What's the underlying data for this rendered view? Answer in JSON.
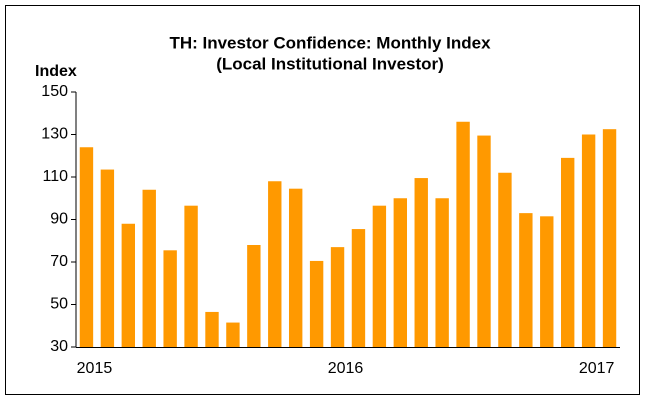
{
  "chart_data": {
    "type": "bar",
    "title": "TH: Investor Confidence: Monthly Index",
    "subtitle": "(Local Institutional Investor)",
    "y_label": "Index",
    "categories": [
      "2015",
      null,
      null,
      null,
      null,
      null,
      null,
      null,
      null,
      null,
      null,
      null,
      "2016",
      null,
      null,
      null,
      null,
      null,
      null,
      null,
      null,
      null,
      null,
      null,
      "2017",
      null
    ],
    "values": [
      124,
      113.5,
      88,
      104,
      75.5,
      96.5,
      46.5,
      41.5,
      78,
      108,
      104.5,
      70.5,
      77,
      85.5,
      96.5,
      100,
      109.5,
      100,
      136,
      129.5,
      112,
      93,
      91.5,
      119,
      130,
      132.5
    ],
    "color": "#ff9900",
    "ylim": [
      30,
      150
    ],
    "yticks": [
      30,
      50,
      70,
      90,
      110,
      130,
      150
    ],
    "grid": false
  }
}
